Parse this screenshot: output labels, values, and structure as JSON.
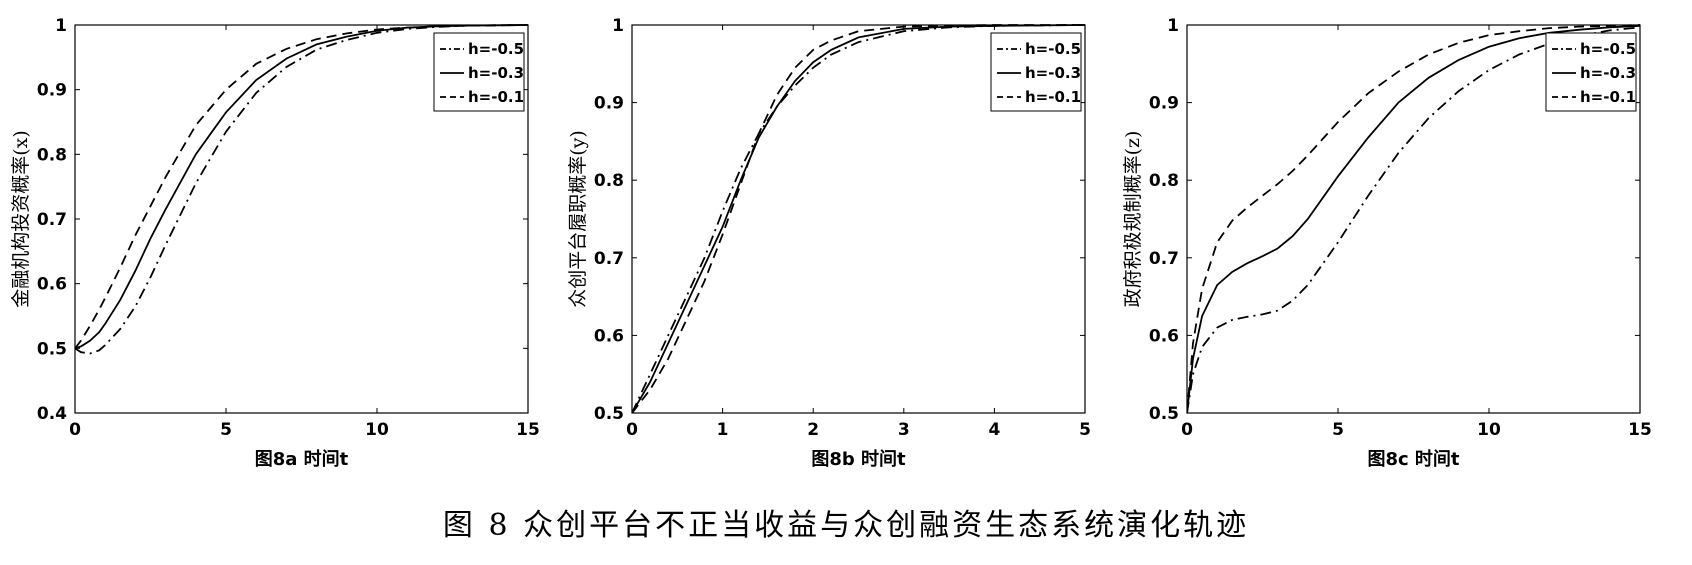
{
  "figure_caption": "图 8   众创平台不正当收益与众创融资生态系统演化轨迹",
  "style": {
    "line_color": "#000000",
    "axis_color": "#000000",
    "background": "#ffffff"
  },
  "chart_data": [
    {
      "type": "line",
      "xlabel": "图8a 时间t",
      "ylabel": "金融机构投资概率(x)",
      "xlim": [
        0,
        15
      ],
      "ylim": [
        0.4,
        1
      ],
      "xticks": [
        0,
        5,
        10,
        15
      ],
      "yticks": [
        0.4,
        0.5,
        0.6,
        0.7,
        0.8,
        0.9,
        1
      ],
      "ytick_labels": [
        "0.4",
        "0.5",
        "0.6",
        "0.7",
        "0.8",
        "0.9",
        "1"
      ],
      "grid": false,
      "legend_position": "top-right",
      "series": [
        {
          "name": "h=-0.5",
          "dash": "dash-dot",
          "x": [
            0,
            0.2,
            0.5,
            0.8,
            1,
            1.5,
            2,
            2.5,
            3,
            4,
            5,
            6,
            7,
            8,
            9,
            10,
            11,
            12,
            13,
            15
          ],
          "y": [
            0.5,
            0.494,
            0.492,
            0.497,
            0.505,
            0.53,
            0.565,
            0.61,
            0.66,
            0.755,
            0.835,
            0.895,
            0.935,
            0.962,
            0.977,
            0.988,
            0.994,
            0.997,
            0.999,
            1.0
          ]
        },
        {
          "name": "h=-0.3",
          "dash": "solid",
          "x": [
            0,
            0.2,
            0.5,
            0.8,
            1,
            1.5,
            2,
            2.5,
            3,
            4,
            5,
            6,
            7,
            8,
            9,
            10,
            11,
            12,
            13,
            15
          ],
          "y": [
            0.5,
            0.503,
            0.512,
            0.525,
            0.538,
            0.575,
            0.62,
            0.67,
            0.715,
            0.8,
            0.865,
            0.915,
            0.948,
            0.97,
            0.982,
            0.991,
            0.996,
            0.998,
            0.999,
            1.0
          ]
        },
        {
          "name": "h=-0.1",
          "dash": "dashed",
          "x": [
            0,
            0.2,
            0.5,
            0.8,
            1,
            1.5,
            2,
            2.5,
            3,
            4,
            5,
            6,
            7,
            8,
            9,
            10,
            11,
            12,
            13,
            15
          ],
          "y": [
            0.5,
            0.512,
            0.535,
            0.56,
            0.578,
            0.625,
            0.675,
            0.72,
            0.765,
            0.845,
            0.9,
            0.94,
            0.963,
            0.978,
            0.987,
            0.993,
            0.996,
            0.998,
            0.999,
            1.0
          ]
        }
      ]
    },
    {
      "type": "line",
      "xlabel": "图8b 时间t",
      "ylabel": "众创平台履职概率(y)",
      "xlim": [
        0,
        5
      ],
      "ylim": [
        0.5,
        1
      ],
      "xticks": [
        0,
        1,
        2,
        3,
        4,
        5
      ],
      "yticks": [
        0.5,
        0.6,
        0.7,
        0.8,
        0.9,
        1
      ],
      "ytick_labels": [
        "0.5",
        "0.6",
        "0.7",
        "0.8",
        "0.9",
        "1"
      ],
      "grid": false,
      "legend_position": "top-right",
      "series": [
        {
          "name": "h=-0.5",
          "dash": "dash-dot",
          "x": [
            0,
            0.2,
            0.4,
            0.6,
            0.8,
            1.0,
            1.2,
            1.4,
            1.6,
            1.8,
            2.0,
            2.2,
            2.5,
            3.0,
            3.5,
            4.0,
            5.0
          ],
          "y": [
            0.5,
            0.55,
            0.6,
            0.65,
            0.7,
            0.76,
            0.815,
            0.86,
            0.895,
            0.922,
            0.945,
            0.962,
            0.978,
            0.992,
            0.997,
            0.999,
            1.0
          ]
        },
        {
          "name": "h=-0.3",
          "dash": "solid",
          "x": [
            0,
            0.2,
            0.4,
            0.6,
            0.8,
            1.0,
            1.2,
            1.4,
            1.6,
            1.8,
            2.0,
            2.2,
            2.5,
            3.0,
            3.5,
            4.0,
            5.0
          ],
          "y": [
            0.5,
            0.54,
            0.59,
            0.64,
            0.69,
            0.74,
            0.8,
            0.855,
            0.895,
            0.928,
            0.952,
            0.968,
            0.984,
            0.995,
            0.998,
            0.999,
            1.0
          ]
        },
        {
          "name": "h=-0.1",
          "dash": "dashed",
          "x": [
            0,
            0.2,
            0.4,
            0.6,
            0.8,
            1.0,
            1.2,
            1.4,
            1.6,
            1.8,
            2.0,
            2.2,
            2.5,
            3.0,
            3.5,
            4.0,
            5.0
          ],
          "y": [
            0.5,
            0.53,
            0.57,
            0.62,
            0.67,
            0.73,
            0.795,
            0.86,
            0.91,
            0.945,
            0.968,
            0.98,
            0.992,
            0.998,
            0.999,
            1.0,
            1.0
          ]
        }
      ]
    },
    {
      "type": "line",
      "xlabel": "图8c 时间t",
      "ylabel": "政府积极规制概率(z)",
      "xlim": [
        0,
        15
      ],
      "ylim": [
        0.5,
        1
      ],
      "xticks": [
        0,
        5,
        10,
        15
      ],
      "yticks": [
        0.5,
        0.6,
        0.7,
        0.8,
        0.9,
        1
      ],
      "ytick_labels": [
        "0.5",
        "0.6",
        "0.7",
        "0.8",
        "0.9",
        "1"
      ],
      "grid": false,
      "legend_position": "top-right",
      "series": [
        {
          "name": "h=-0.5",
          "dash": "dash-dot",
          "x": [
            0,
            0.2,
            0.5,
            1,
            1.5,
            2,
            2.5,
            3,
            3.5,
            4,
            5,
            6,
            7,
            8,
            9,
            10,
            11,
            12,
            13,
            14,
            15
          ],
          "y": [
            0.5,
            0.55,
            0.585,
            0.61,
            0.62,
            0.624,
            0.627,
            0.632,
            0.645,
            0.665,
            0.72,
            0.78,
            0.835,
            0.88,
            0.915,
            0.942,
            0.962,
            0.976,
            0.986,
            0.993,
            0.997
          ]
        },
        {
          "name": "h=-0.3",
          "dash": "solid",
          "x": [
            0,
            0.2,
            0.5,
            1,
            1.5,
            2,
            2.5,
            3,
            3.5,
            4,
            5,
            6,
            7,
            8,
            9,
            10,
            11,
            12,
            13,
            14,
            15
          ],
          "y": [
            0.5,
            0.57,
            0.625,
            0.665,
            0.682,
            0.693,
            0.702,
            0.712,
            0.728,
            0.75,
            0.805,
            0.855,
            0.9,
            0.932,
            0.955,
            0.972,
            0.983,
            0.99,
            0.994,
            0.997,
            0.999
          ]
        },
        {
          "name": "h=-0.1",
          "dash": "dashed",
          "x": [
            0,
            0.2,
            0.5,
            1,
            1.5,
            2,
            2.5,
            3,
            3.5,
            4,
            5,
            6,
            7,
            8,
            9,
            10,
            11,
            12,
            13,
            14,
            15
          ],
          "y": [
            0.5,
            0.59,
            0.66,
            0.72,
            0.748,
            0.765,
            0.78,
            0.795,
            0.812,
            0.832,
            0.875,
            0.912,
            0.94,
            0.962,
            0.977,
            0.987,
            0.992,
            0.996,
            0.998,
            0.999,
            1.0
          ]
        }
      ]
    }
  ]
}
